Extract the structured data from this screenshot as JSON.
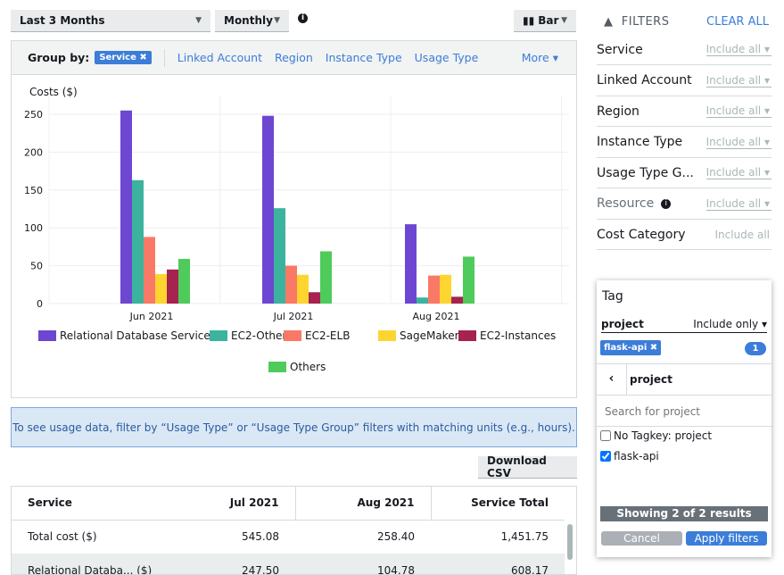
{
  "toolbar": {
    "range": "Last 3 Months",
    "granularity": "Monthly",
    "chart_type": "Bar"
  },
  "groupby": {
    "label": "Group by:",
    "selected": "Service",
    "options": [
      "Linked Account",
      "Region",
      "Instance Type",
      "Usage Type"
    ],
    "more": "More"
  },
  "chart_data": {
    "type": "bar",
    "ylabel": "Costs ($)",
    "ylim": [
      0,
      250
    ],
    "yticks": [
      0,
      50,
      100,
      150,
      200,
      250
    ],
    "categories": [
      "Jun 2021",
      "Jul 2021",
      "Aug 2021"
    ],
    "series": [
      {
        "name": "Relational Database Service",
        "color": "#6d47d1",
        "values": [
          255,
          248,
          104.78
        ]
      },
      {
        "name": "EC2-Other",
        "color": "#3cb39e",
        "values": [
          163,
          126,
          8
        ]
      },
      {
        "name": "EC2-ELB",
        "color": "#fa7966",
        "values": [
          88,
          50,
          37
        ]
      },
      {
        "name": "SageMaker",
        "color": "#fed52f",
        "values": [
          39,
          38,
          38
        ]
      },
      {
        "name": "EC2-Instances",
        "color": "#a6224f",
        "values": [
          45,
          15,
          9
        ]
      },
      {
        "name": "Others",
        "color": "#4ecb5b",
        "values": [
          59,
          69,
          62
        ]
      }
    ]
  },
  "info_banner": "To see usage data, filter by “Usage Type” or “Usage Type Group” filters with matching units (e.g., hours).",
  "download": "Download CSV",
  "table": {
    "headers": [
      "Service",
      "Jul 2021",
      "Aug 2021",
      "Service Total"
    ],
    "rows": [
      [
        "Total cost ($)",
        "545.08",
        "258.40",
        "1,451.75"
      ],
      [
        "Relational Databa... ($)",
        "247.50",
        "104.78",
        "608.17"
      ]
    ]
  },
  "filters": {
    "title": "FILTERS",
    "clear": "CLEAR ALL",
    "include_all": "Include all",
    "items": [
      "Service",
      "Linked Account",
      "Region",
      "Instance Type",
      "Usage Type G...",
      "Resource",
      "Cost Category"
    ],
    "usage_type": "Usage Type"
  },
  "tag": {
    "title": "Tag",
    "key": "project",
    "mode": "Include only",
    "chip": "flask-api",
    "count": "1",
    "back_label": "project",
    "search_placeholder": "Search for project",
    "options": [
      {
        "label": "No Tagkey: project",
        "checked": false
      },
      {
        "label": "flask-api",
        "checked": true
      }
    ],
    "showing": "Showing 2 of 2 results",
    "cancel": "Cancel",
    "apply": "Apply filters"
  }
}
